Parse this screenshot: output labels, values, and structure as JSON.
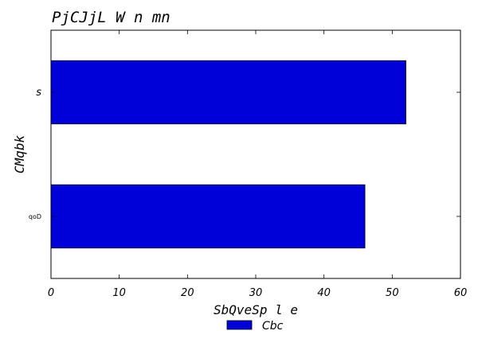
{
  "chart_data": {
    "type": "bar",
    "orientation": "horizontal",
    "title": "PjCJjL W n mn",
    "xlabel": "SbQveSp l e",
    "ylabel": "CMqbk",
    "categories": [
      "qoD",
      "s"
    ],
    "series": [
      {
        "name": "Cbc",
        "values": [
          46,
          52
        ],
        "color": "#0000d8"
      }
    ],
    "xlim": [
      0,
      60
    ],
    "xticks": [
      0,
      10,
      20,
      30,
      40,
      50,
      60
    ],
    "grid": false,
    "legend": {
      "position": "bottom-center"
    }
  }
}
